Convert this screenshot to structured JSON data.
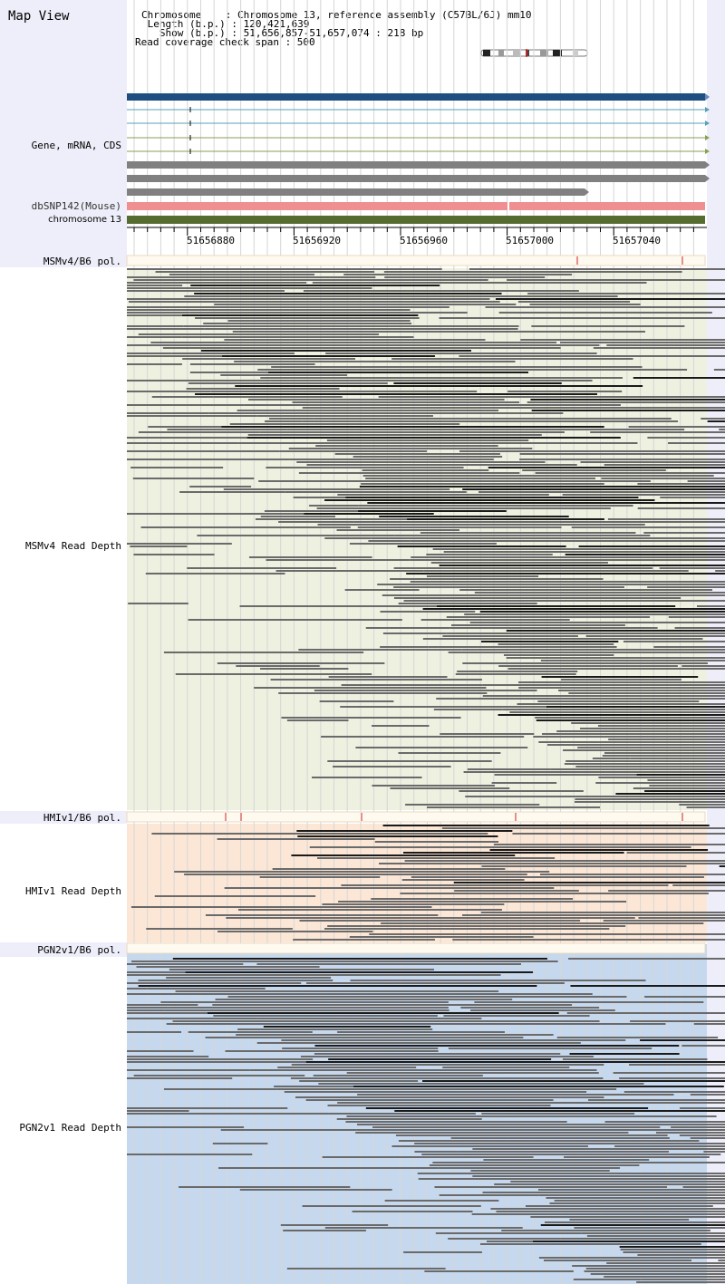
{
  "app_title": "Map View",
  "info": {
    "chromosome": "Chromosome    : Chromosome 13, reference assembly (C57BL/6J) mm10",
    "length": " Length (b.p.) : 120,421,639",
    "show": "   Show (b.p.) : 51,656,857-51,657,074 : 218 bp",
    "span": "Read coverage check span : 500"
  },
  "tracks": {
    "gene": "Gene, mRNA, CDS",
    "dbsnp": "dbSNP142(Mouse)",
    "chrom": "chromosome 13",
    "msm_pol": "MSMv4/B6 pol.",
    "msm_depth": "MSMv4 Read Depth",
    "hmi_pol": "HMIv1/B6 pol.",
    "hmi_depth": "HMIv1 Read Depth",
    "pgn_pol": "PGN2v1/B6 pol.",
    "pgn_depth": "PGN2v1 Read Depth"
  },
  "ruler": {
    "tick_labels": [
      "51656880",
      "51656920",
      "51656960",
      "51657000",
      "51657040"
    ]
  },
  "colors": {
    "sidebar": "#eeeefa",
    "gene_bar": "#1f4e80",
    "snp_bar": "#f08f91",
    "chrom_bar": "#556b2f",
    "read": "#6a6a6a",
    "read_dark": "#1a1a1a",
    "msm_bg": "#eef0e0",
    "hmi_bg": "#fce7d6",
    "pgn_bg": "#c6d8ee",
    "pol_mark": "#cc2222"
  }
}
